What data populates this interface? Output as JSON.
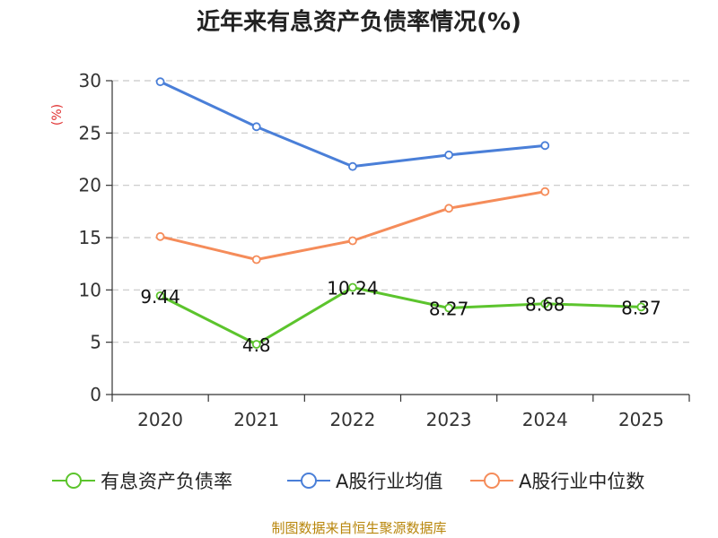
{
  "chart_data": {
    "type": "line",
    "title": "近年来有息资产负债率情况(%)",
    "ylabel": "(%)",
    "xlabel": "",
    "categories": [
      "2020",
      "2021",
      "2022",
      "2023",
      "2024",
      "2025"
    ],
    "ylim": [
      0,
      30
    ],
    "yticks": [
      0,
      5,
      10,
      15,
      20,
      25,
      30
    ],
    "grid": true,
    "legend_position": "bottom",
    "series": [
      {
        "name": "有息资产负债率",
        "color": "#5cc42d",
        "values": [
          9.44,
          4.8,
          10.24,
          8.27,
          8.68,
          8.37
        ],
        "labels": [
          "9.44",
          "4.8",
          "10.24",
          "8.27",
          "8.68",
          "8.37"
        ]
      },
      {
        "name": "A股行业均值",
        "color": "#4a7fd8",
        "values": [
          29.9,
          25.6,
          21.8,
          22.9,
          23.8,
          null
        ]
      },
      {
        "name": "A股行业中位数",
        "color": "#f58c5a",
        "values": [
          15.1,
          12.9,
          14.7,
          17.8,
          19.4,
          null
        ]
      }
    ]
  },
  "source": "制图数据来自恒生聚源数据库"
}
